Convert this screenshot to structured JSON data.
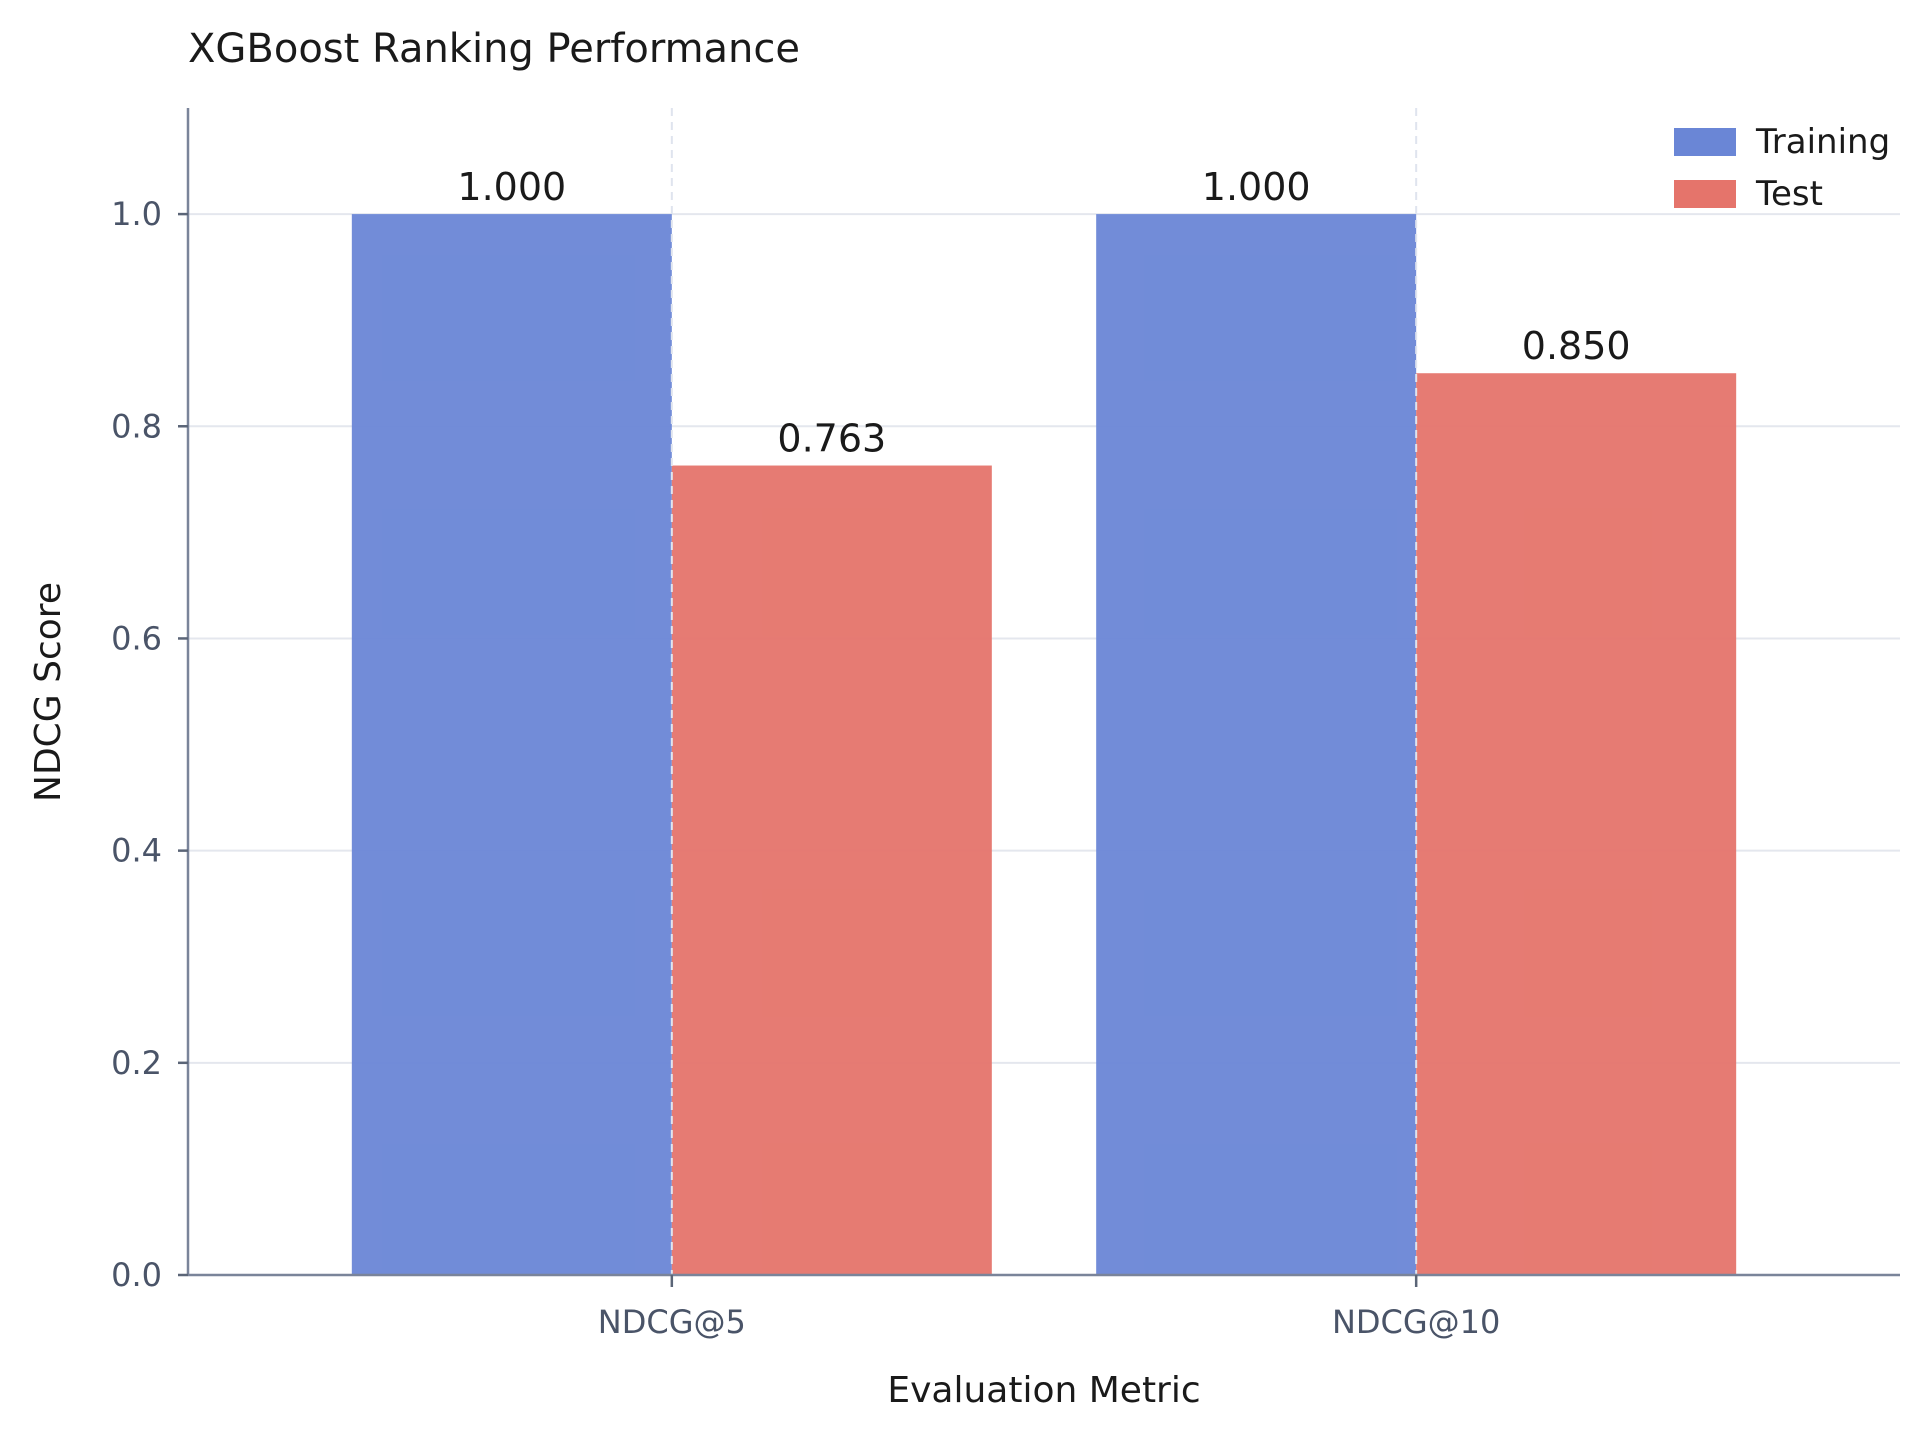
{
  "chart_data": {
    "type": "bar",
    "title": "XGBoost Ranking Performance",
    "xlabel": "Evaluation Metric",
    "ylabel": "NDCG Score",
    "categories": [
      "NDCG@5",
      "NDCG@10"
    ],
    "series": [
      {
        "name": "Training",
        "values": [
          1.0,
          1.0
        ],
        "labels": [
          "1.000",
          "1.000"
        ],
        "color": "#6a86d6"
      },
      {
        "name": "Test",
        "values": [
          0.763,
          0.85
        ],
        "labels": [
          "0.763",
          "0.850"
        ],
        "color": "#e5746b"
      }
    ],
    "ylim": [
      0,
      1.1
    ],
    "yticks": [
      0.0,
      0.2,
      0.4,
      0.6,
      0.8,
      1.0
    ],
    "ytick_labels": [
      "0.0",
      "0.2",
      "0.4",
      "0.6",
      "0.8",
      "1.0"
    ],
    "grid": true,
    "legend_position": "top-right"
  }
}
